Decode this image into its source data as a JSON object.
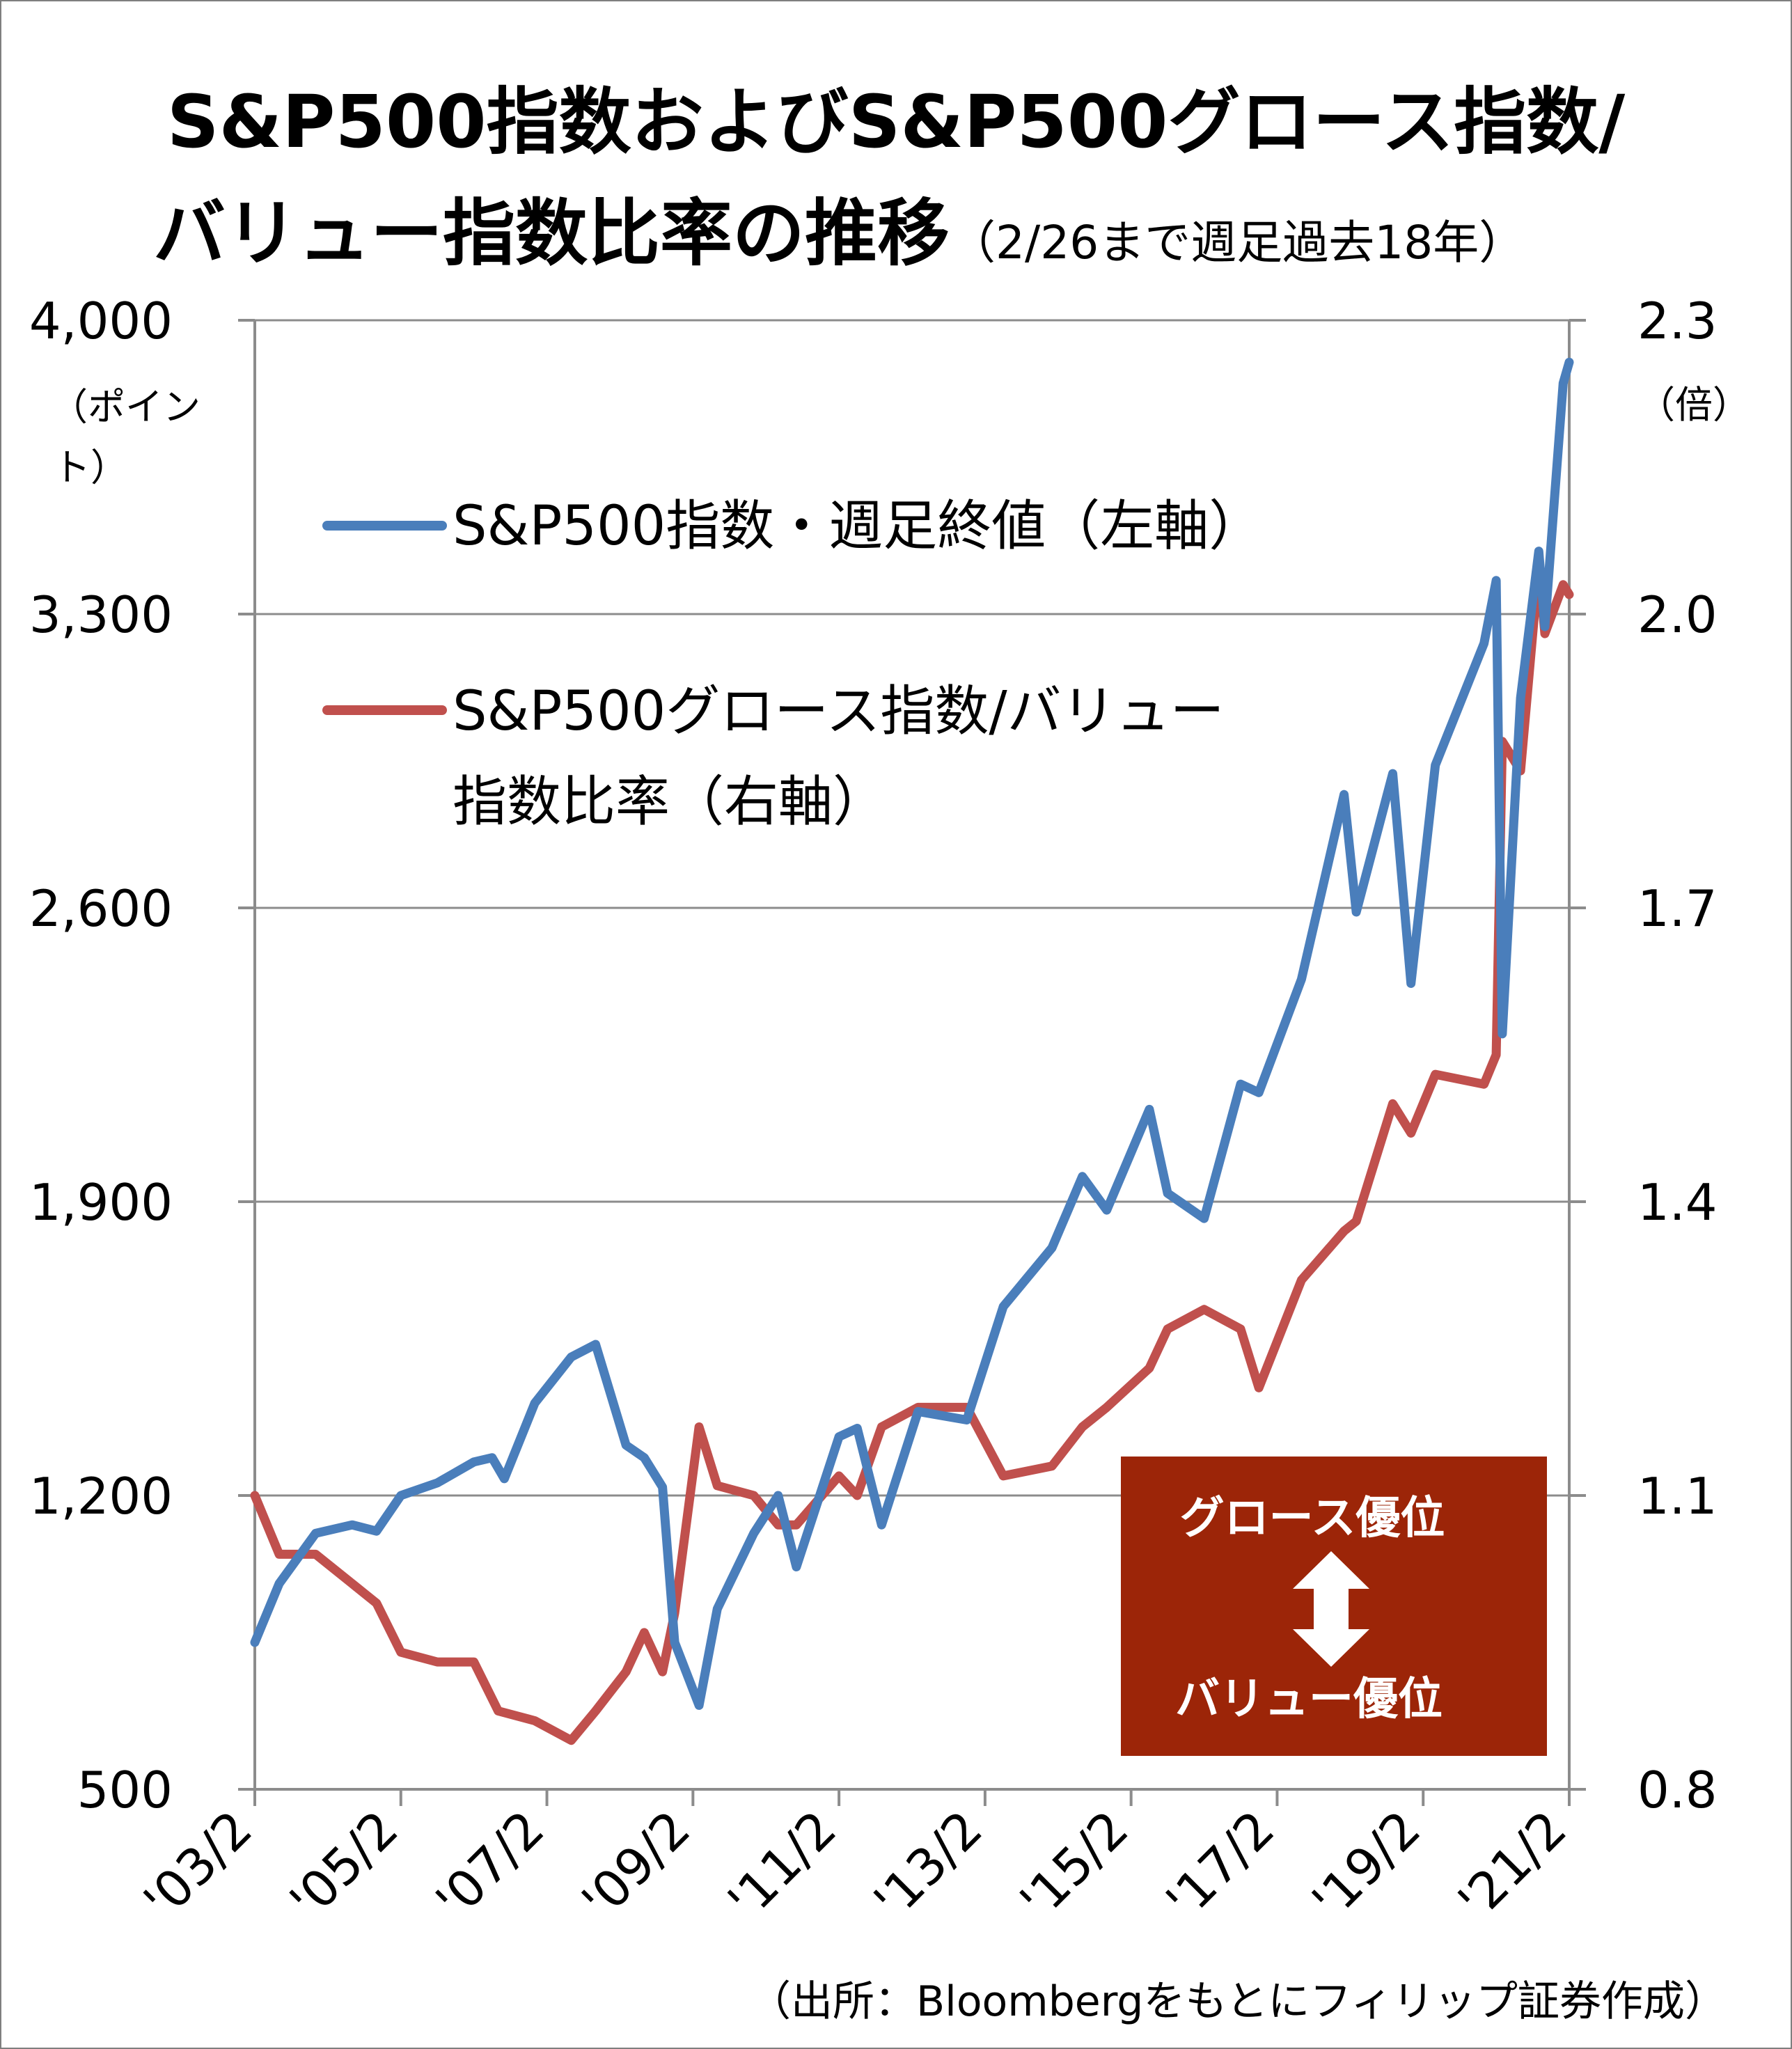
{
  "title_line1": "S&P500指数およびS&P500グロース指数/",
  "title_line2": "バリュー指数比率の推移",
  "title_sub": "（2/26まで週足過去18年）",
  "left_unit_line1": "（ポイン",
  "left_unit_line2": "ト）",
  "right_unit": "（倍）",
  "source_note": "（出所：Bloombergをもとにフィリップ証券作成）",
  "legend": {
    "blue_label": "S&P500指数・週足終値（左軸）",
    "red_label_line1": "S&P500グロース指数/バリュー",
    "red_label_line2": "指数比率（右軸）"
  },
  "annotation_box": {
    "top_label": "グロース優位",
    "bottom_label": "バリュー優位",
    "color": "#9c2508"
  },
  "chart_data": {
    "type": "line",
    "x_ticks": [
      "'03/2",
      "'05/2",
      "'07/2",
      "'09/2",
      "'11/2",
      "'13/2",
      "'15/2",
      "'17/2",
      "'19/2",
      "'21/2"
    ],
    "y_left": {
      "ticks": [
        "500",
        "1,200",
        "1,900",
        "2,600",
        "3,300",
        "4,000"
      ],
      "range": [
        500,
        4000
      ]
    },
    "y_right": {
      "ticks": [
        "0.8",
        "1.1",
        "1.4",
        "1.7",
        "2.0",
        "2.3"
      ],
      "range": [
        0.8,
        2.3
      ]
    },
    "grid": true,
    "series": [
      {
        "name": "S&P500指数・週足終値（左軸）",
        "axis": "left",
        "color": "#4a7ebb",
        "points": [
          [
            "2003-02",
            850
          ],
          [
            "2003-06",
            990
          ],
          [
            "2003-12",
            1110
          ],
          [
            "2004-06",
            1130
          ],
          [
            "2004-10",
            1115
          ],
          [
            "2005-02",
            1200
          ],
          [
            "2005-08",
            1230
          ],
          [
            "2006-02",
            1280
          ],
          [
            "2006-05",
            1290
          ],
          [
            "2006-07",
            1240
          ],
          [
            "2006-12",
            1420
          ],
          [
            "2007-06",
            1530
          ],
          [
            "2007-10",
            1560
          ],
          [
            "2008-03",
            1320
          ],
          [
            "2008-06",
            1290
          ],
          [
            "2008-09",
            1220
          ],
          [
            "2008-11",
            850
          ],
          [
            "2009-03",
            700
          ],
          [
            "2009-06",
            930
          ],
          [
            "2009-12",
            1110
          ],
          [
            "2010-04",
            1200
          ],
          [
            "2010-07",
            1030
          ],
          [
            "2011-02",
            1340
          ],
          [
            "2011-05",
            1360
          ],
          [
            "2011-09",
            1130
          ],
          [
            "2012-03",
            1400
          ],
          [
            "2012-11",
            1380
          ],
          [
            "2013-05",
            1650
          ],
          [
            "2014-01",
            1790
          ],
          [
            "2014-06",
            1960
          ],
          [
            "2014-10",
            1880
          ],
          [
            "2015-05",
            2120
          ],
          [
            "2015-08",
            1920
          ],
          [
            "2016-02",
            1860
          ],
          [
            "2016-08",
            2180
          ],
          [
            "2016-11",
            2160
          ],
          [
            "2017-06",
            2430
          ],
          [
            "2018-01",
            2870
          ],
          [
            "2018-03",
            2590
          ],
          [
            "2018-09",
            2920
          ],
          [
            "2018-12",
            2420
          ],
          [
            "2019-04",
            2940
          ],
          [
            "2019-12",
            3230
          ],
          [
            "2020-02",
            3380
          ],
          [
            "2020-03",
            2300
          ],
          [
            "2020-06",
            3100
          ],
          [
            "2020-09",
            3450
          ],
          [
            "2020-10",
            3270
          ],
          [
            "2021-01",
            3850
          ],
          [
            "2021-02",
            3900
          ]
        ]
      },
      {
        "name": "S&P500グロース指数/バリュー指数比率（右軸）",
        "axis": "right",
        "color": "#c0504d",
        "points": [
          [
            "2003-02",
            1.1
          ],
          [
            "2003-06",
            1.04
          ],
          [
            "2003-12",
            1.04
          ],
          [
            "2004-06",
            1.01
          ],
          [
            "2004-10",
            0.99
          ],
          [
            "2005-02",
            0.94
          ],
          [
            "2005-08",
            0.93
          ],
          [
            "2006-02",
            0.93
          ],
          [
            "2006-06",
            0.88
          ],
          [
            "2006-12",
            0.87
          ],
          [
            "2007-06",
            0.85
          ],
          [
            "2007-10",
            0.88
          ],
          [
            "2008-03",
            0.92
          ],
          [
            "2008-06",
            0.96
          ],
          [
            "2008-09",
            0.92
          ],
          [
            "2008-11",
            0.98
          ],
          [
            "2009-03",
            1.17
          ],
          [
            "2009-06",
            1.11
          ],
          [
            "2009-12",
            1.1
          ],
          [
            "2010-04",
            1.07
          ],
          [
            "2010-07",
            1.07
          ],
          [
            "2011-02",
            1.12
          ],
          [
            "2011-05",
            1.1
          ],
          [
            "2011-09",
            1.17
          ],
          [
            "2012-03",
            1.19
          ],
          [
            "2012-11",
            1.19
          ],
          [
            "2013-05",
            1.12
          ],
          [
            "2014-01",
            1.13
          ],
          [
            "2014-06",
            1.17
          ],
          [
            "2014-10",
            1.19
          ],
          [
            "2015-05",
            1.23
          ],
          [
            "2015-08",
            1.27
          ],
          [
            "2016-02",
            1.29
          ],
          [
            "2016-08",
            1.27
          ],
          [
            "2016-11",
            1.21
          ],
          [
            "2017-06",
            1.32
          ],
          [
            "2018-01",
            1.37
          ],
          [
            "2018-03",
            1.38
          ],
          [
            "2018-09",
            1.5
          ],
          [
            "2018-12",
            1.47
          ],
          [
            "2019-04",
            1.53
          ],
          [
            "2019-12",
            1.52
          ],
          [
            "2020-02",
            1.55
          ],
          [
            "2020-03",
            1.87
          ],
          [
            "2020-06",
            1.84
          ],
          [
            "2020-09",
            2.05
          ],
          [
            "2020-10",
            1.98
          ],
          [
            "2021-01",
            2.03
          ],
          [
            "2021-02",
            2.02
          ]
        ]
      }
    ]
  }
}
